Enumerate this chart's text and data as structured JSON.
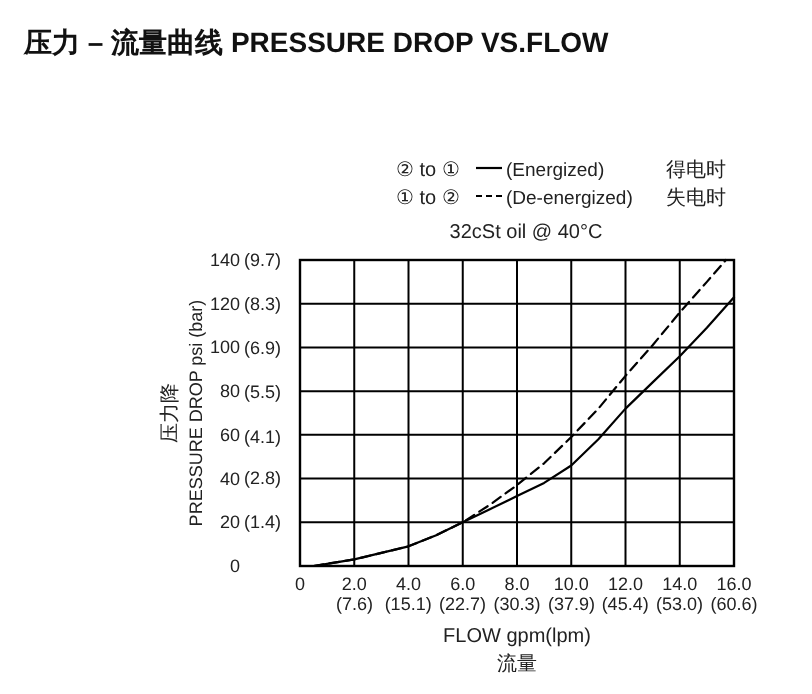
{
  "chart_data": {
    "type": "line",
    "title": "压力 – 流量曲线 PRESSURE DROP VS.FLOW",
    "xlabel": "FLOW gpm(lpm)",
    "ylabel": "PRESSURE DROP psi (bar)",
    "annotations": [
      "② to ①",
      "得电时",
      "① to ②",
      "失电时",
      "32cSt oil @ 40°C",
      "压力降",
      "流量"
    ],
    "xlim": [
      0,
      16
    ],
    "ylim": [
      0,
      140
    ],
    "xticks": [
      0,
      {
        "value": 2,
        "label": "2.0"
      },
      {
        "value": 4,
        "label": "4.0"
      },
      {
        "value": 6,
        "label": "6.0"
      },
      {
        "value": 8,
        "label": "8.0"
      },
      {
        "value": 10,
        "label": "10.0"
      },
      {
        "value": 12,
        "label": "12.0"
      },
      {
        "value": 14,
        "label": "14.0"
      },
      {
        "value": 16,
        "label": "16.0"
      }
    ],
    "x2lim": [
      0,
      60.6
    ],
    "x2ticks": [
      {
        "value": 7.6,
        "label": "(7.6)"
      },
      {
        "value": 15.1,
        "label": "(15.1)"
      },
      {
        "value": 22.7,
        "label": "(22.7)"
      },
      {
        "value": 30.3,
        "label": "(30.3)"
      },
      {
        "value": 37.9,
        "label": "(37.9)"
      },
      {
        "value": 45.4,
        "label": "(45.4)"
      },
      {
        "value": 53.0,
        "label": "(53.0)"
      },
      {
        "value": 60.6,
        "label": "(60.6)"
      }
    ],
    "yticks": [
      0,
      20,
      40,
      60,
      80,
      100,
      120,
      140
    ],
    "y2lim": [
      0,
      9.7
    ],
    "y2ticks": [
      {
        "value": 1.4,
        "label": "(1.4)"
      },
      {
        "value": 2.8,
        "label": "(2.8)"
      },
      {
        "value": 4.1,
        "label": "(4.1)"
      },
      {
        "value": 5.5,
        "label": "(5.5)"
      },
      {
        "value": 6.9,
        "label": "(6.9)"
      },
      {
        "value": 8.3,
        "label": "(8.3)"
      },
      {
        "value": 9.7,
        "label": "(9.7)"
      }
    ],
    "grid": true,
    "legend": "top",
    "marker": "none",
    "series": [
      {
        "name": "(Energized)",
        "color": "#000000",
        "line_style": "solid",
        "x": [
          0.5,
          1,
          2,
          3,
          4,
          5,
          6,
          7,
          8,
          9,
          10,
          11,
          12,
          13,
          14,
          15,
          16
        ],
        "values": [
          0,
          1,
          3,
          6,
          9,
          14,
          20,
          26,
          32,
          38,
          46,
          58,
          72,
          84,
          96,
          109,
          123
        ]
      },
      {
        "name": "(De-energized)",
        "color": "#000000",
        "line_style": "dashed",
        "x": [
          0.5,
          1,
          2,
          3,
          4,
          5,
          6,
          7,
          8,
          9,
          10,
          11,
          12,
          13,
          14,
          15,
          15.7
        ],
        "values": [
          0,
          1,
          3,
          6,
          9,
          14,
          20,
          28,
          37,
          47,
          59,
          72,
          87,
          101,
          116,
          130,
          140
        ]
      }
    ]
  }
}
